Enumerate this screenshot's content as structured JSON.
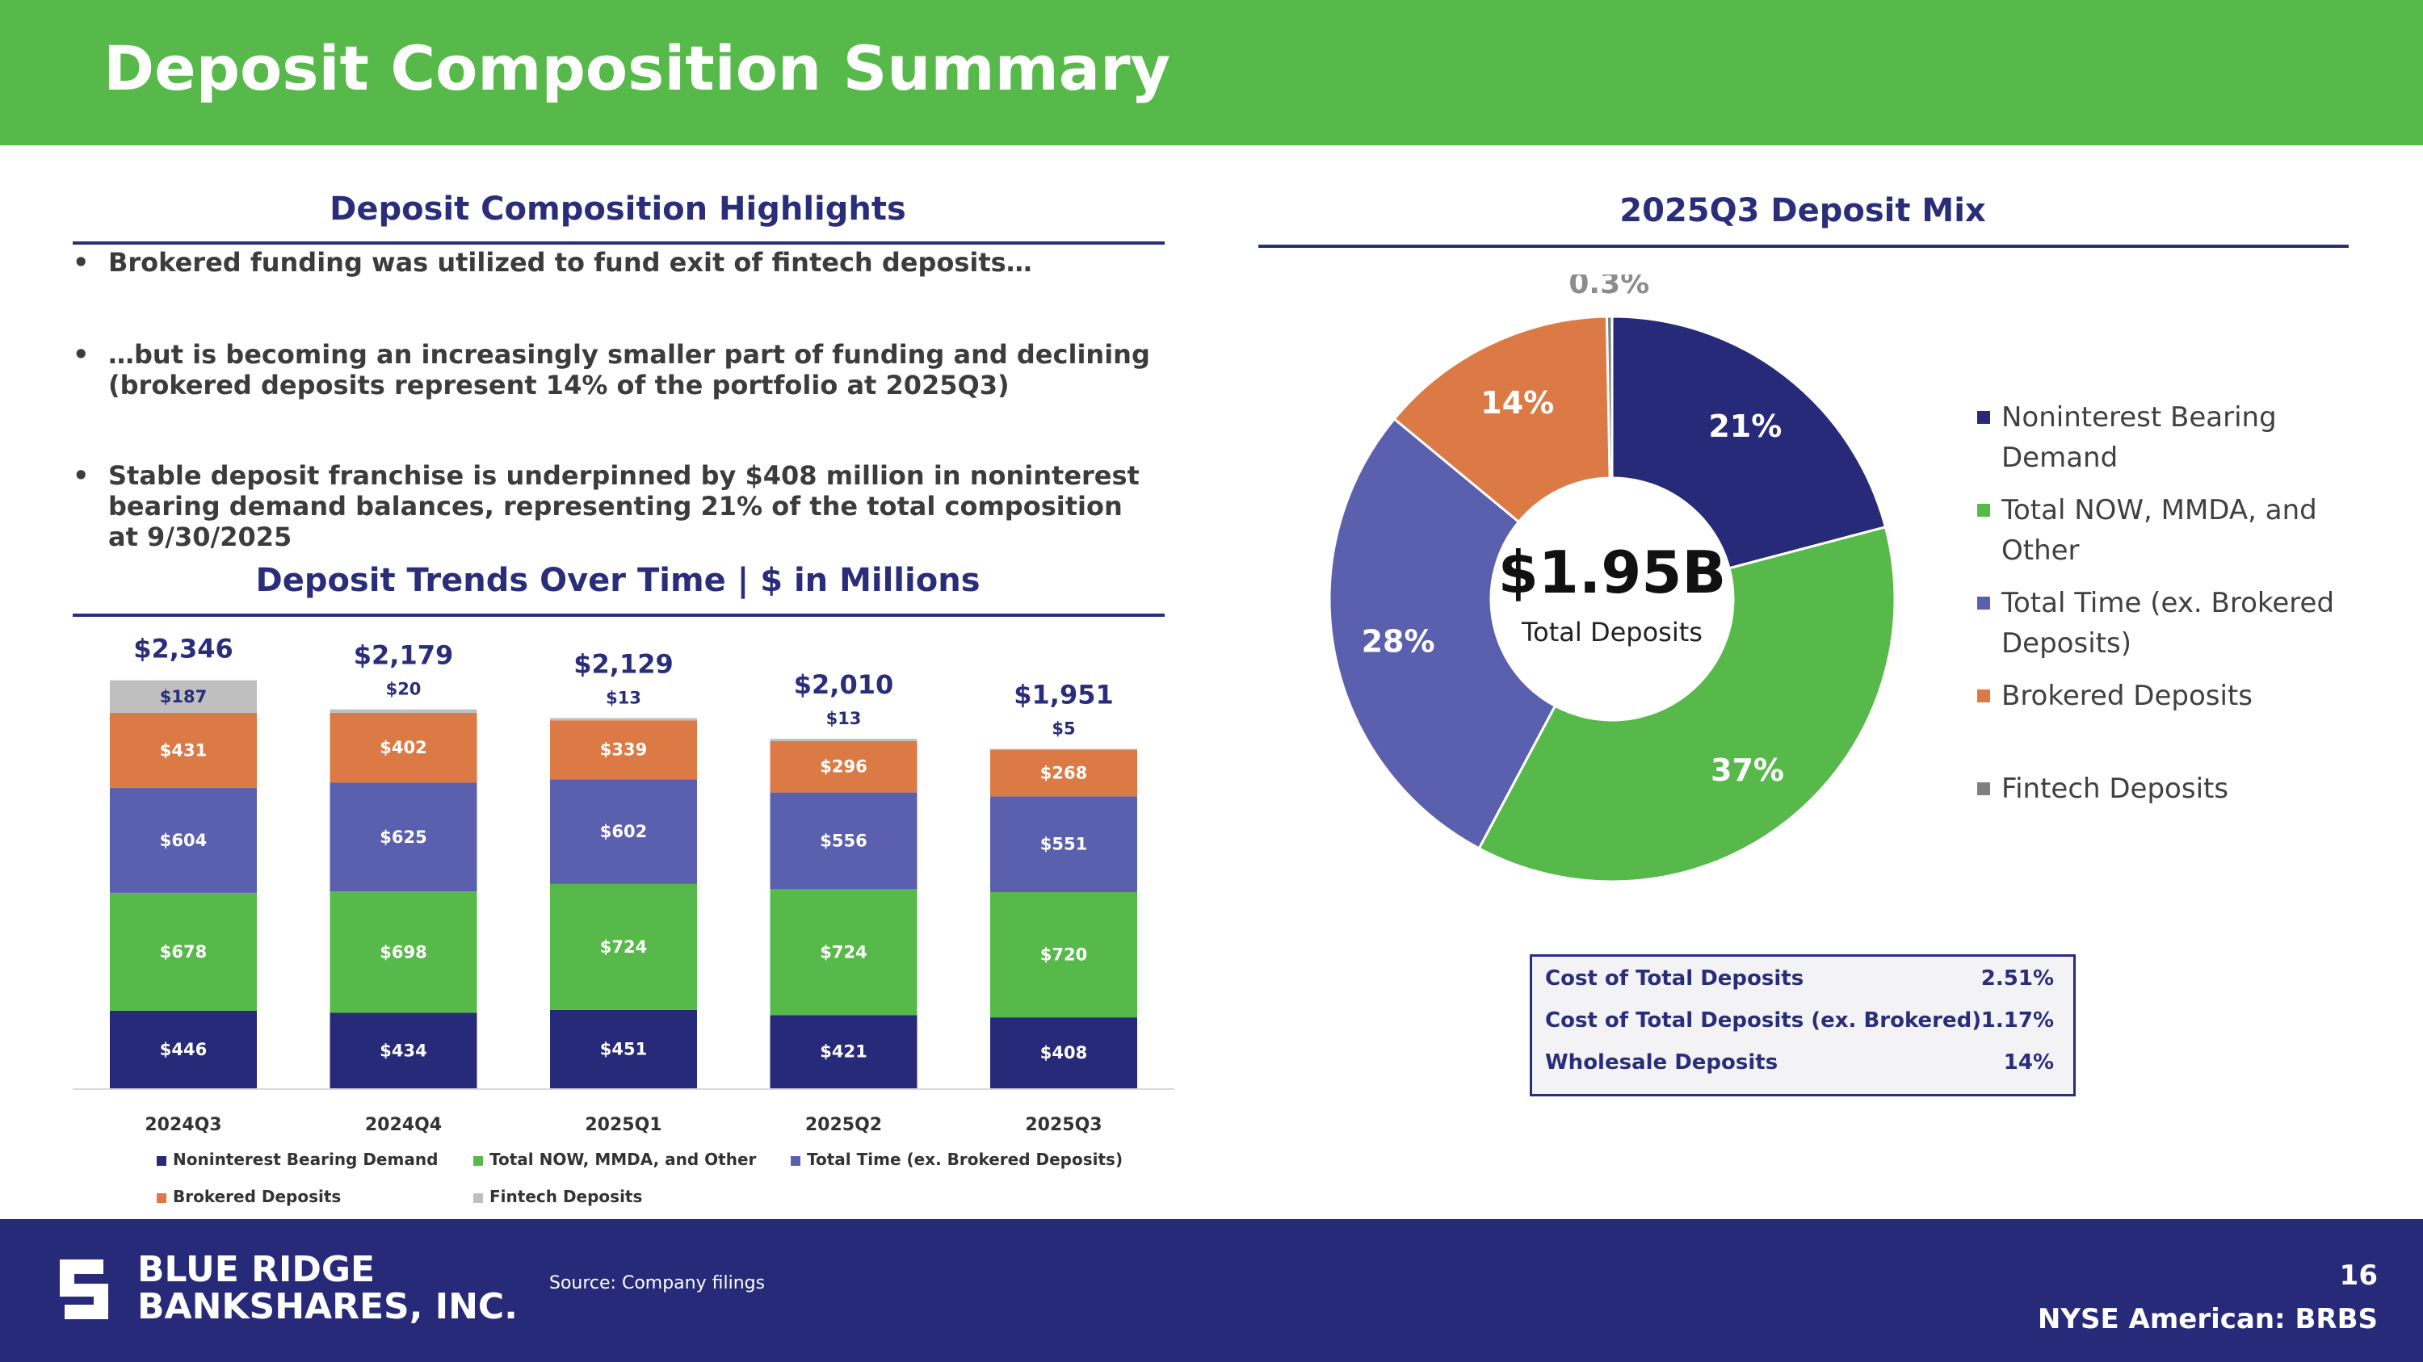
{
  "title": "Deposit Composition Summary",
  "highlights": {
    "heading": "Deposit Composition Highlights",
    "bullets": [
      "Brokered funding was utilized to fund exit of fintech deposits…",
      "…but is becoming an increasingly smaller part of funding and declining (brokered deposits represent 14% of the portfolio at 2025Q3)",
      "Stable deposit franchise is underpinned by $408 million in noninterest bearing demand balances, representing 21% of the total composition at 9/30/2025"
    ],
    "bullet_symbol": "•"
  },
  "trends": {
    "heading": "Deposit Trends Over Time | $ in Millions"
  },
  "mix": {
    "heading": "2025Q3 Deposit Mix",
    "center_value": "$1.95B",
    "center_label": "Total Deposits",
    "outside_label": "0.3%",
    "legend": [
      "Noninterest Bearing Demand",
      "Total NOW, MMDA, and Other",
      "Total Time (ex. Brokered Deposits)",
      "Brokered Deposits",
      "Fintech Deposits"
    ]
  },
  "cost_table": [
    {
      "label": "Cost of Total Deposits",
      "value": "2.51%"
    },
    {
      "label": "Cost of Total Deposits (ex. Brokered)",
      "value": "1.17%"
    },
    {
      "label": "Wholesale Deposits",
      "value": "14%"
    }
  ],
  "footer": {
    "logo_line1": "BLUE RIDGE",
    "logo_line2": "BANKSHARES, INC.",
    "source": "Source: Company filings",
    "page_number": "16",
    "ticker": "NYSE American: BRBS"
  },
  "colors": {
    "green": "#57b94a",
    "navy": "#262a78",
    "nib": "#262a78",
    "now": "#57b94a",
    "time": "#5a60ad",
    "brokered": "#dc7a45",
    "fintech_bar": "#bfbfbf",
    "fintech_pie": "#7f7f7f"
  },
  "chart_data": [
    {
      "type": "bar",
      "stacked": true,
      "title": "Deposit Trends Over Time | $ in Millions",
      "categories": [
        "2024Q3",
        "2024Q4",
        "2025Q1",
        "2025Q2",
        "2025Q3"
      ],
      "totals": [
        2346,
        2179,
        2129,
        2010,
        1951
      ],
      "total_labels": [
        "$2,346",
        "$2,179",
        "$2,129",
        "$2,010",
        "$1,951"
      ],
      "series": [
        {
          "name": "Noninterest Bearing Demand",
          "values": [
            446,
            434,
            451,
            421,
            408
          ],
          "labels": [
            "$446",
            "$434",
            "$451",
            "$421",
            "$408"
          ]
        },
        {
          "name": "Total NOW, MMDA, and Other",
          "values": [
            678,
            698,
            724,
            724,
            720
          ],
          "labels": [
            "$678",
            "$698",
            "$724",
            "$724",
            "$720"
          ]
        },
        {
          "name": "Total Time (ex. Brokered Deposits)",
          "values": [
            604,
            625,
            602,
            556,
            551
          ],
          "labels": [
            "$604",
            "$625",
            "$602",
            "$556",
            "$551"
          ]
        },
        {
          "name": "Brokered Deposits",
          "values": [
            431,
            402,
            339,
            296,
            268
          ],
          "labels": [
            "$431",
            "$402",
            "$339",
            "$296",
            "$268"
          ]
        },
        {
          "name": "Fintech Deposits",
          "values": [
            187,
            20,
            13,
            13,
            5
          ],
          "labels": [
            "$187",
            "$20",
            "$13",
            "$13",
            "$5"
          ]
        }
      ],
      "ylim": [
        0,
        2346
      ],
      "legend": "bottom"
    },
    {
      "type": "pie",
      "donut": true,
      "title": "2025Q3 Deposit Mix",
      "labels": [
        "Noninterest Bearing Demand",
        "Total NOW, MMDA, and Other",
        "Total Time (ex. Brokered Deposits)",
        "Brokered Deposits",
        "Fintech Deposits"
      ],
      "values": [
        20.9,
        36.9,
        28.2,
        13.7,
        0.3
      ],
      "value_labels": [
        "21%",
        "37%",
        "28%",
        "14%",
        "0.3%"
      ],
      "legend": "right"
    }
  ]
}
